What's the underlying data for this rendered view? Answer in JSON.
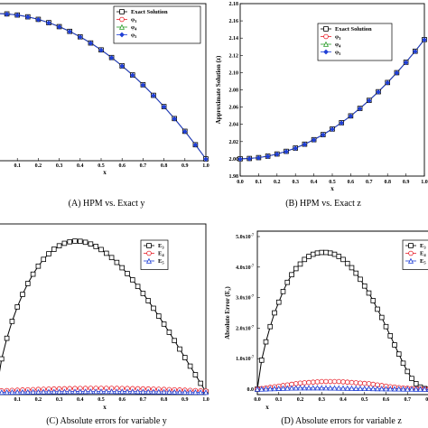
{
  "chart_data": [
    {
      "type": "line",
      "caption": "(A) HPM vs. Exact y",
      "xlabel": "x",
      "ylabel": "",
      "xlim": [
        0.0,
        1.0
      ],
      "x_ticks": [
        "0.1",
        "0.2",
        "0.3",
        "0.4",
        "0.5",
        "0.6",
        "0.7",
        "0.8",
        "0.9",
        "1.0"
      ],
      "y_ticks": [],
      "legend_position": "top-right",
      "series": [
        {
          "name": "Exact Solution",
          "marker": "square",
          "color": "#000000",
          "legend_color": "#000000"
        },
        {
          "name": "φ3",
          "marker": "circle",
          "color": "#e8202a",
          "legend_color": "#e8202a"
        },
        {
          "name": "φ4",
          "marker": "triangle",
          "color": "#2a9d2a",
          "legend_color": "#2a9d2a"
        },
        {
          "name": "φ5",
          "marker": "diamond",
          "color": "#1f3fd6",
          "legend_color": "#1f3fd6"
        }
      ],
      "x": [
        0.0,
        0.05,
        0.1,
        0.15,
        0.2,
        0.25,
        0.3,
        0.35,
        0.4,
        0.45,
        0.5,
        0.55,
        0.6,
        0.65,
        0.7,
        0.75,
        0.8,
        0.85,
        0.9,
        0.95,
        1.0
      ],
      "y_norm": [
        1.0,
        0.9975,
        0.99,
        0.9775,
        0.96,
        0.9375,
        0.91,
        0.8775,
        0.84,
        0.7975,
        0.75,
        0.6975,
        0.64,
        0.5775,
        0.51,
        0.4375,
        0.36,
        0.2775,
        0.19,
        0.0975,
        0.0
      ]
    },
    {
      "type": "line",
      "caption": "(B) HPM vs. Exact z",
      "xlabel": "x",
      "ylabel": "Approximate Solution (z)",
      "xlim": [
        0.0,
        1.0
      ],
      "ylim": [
        1.98,
        2.18
      ],
      "x_ticks": [
        "0.0",
        "0.1",
        "0.2",
        "0.3",
        "0.4",
        "0.5",
        "0.6",
        "0.7",
        "0.8",
        "0.9",
        "1.0"
      ],
      "y_ticks": [
        "1.98",
        "2.00",
        "2.02",
        "2.04",
        "2.06",
        "2.08",
        "2.10",
        "2.12",
        "2.14",
        "2.16",
        "2.18"
      ],
      "legend_position": "top-right",
      "series": [
        {
          "name": "Exact Solution",
          "marker": "square",
          "color": "#000000",
          "legend_color": "#000000"
        },
        {
          "name": "φ3",
          "marker": "circle",
          "color": "#e8202a",
          "legend_color": "#e8202a"
        },
        {
          "name": "φ4",
          "marker": "triangle",
          "color": "#2a9d2a",
          "legend_color": "#2a9d2a"
        },
        {
          "name": "φ5",
          "marker": "diamond",
          "color": "#1f3fd6",
          "legend_color": "#1f3fd6"
        }
      ],
      "x": [
        0.0,
        0.05,
        0.1,
        0.15,
        0.2,
        0.25,
        0.3,
        0.35,
        0.4,
        0.45,
        0.5,
        0.55,
        0.6,
        0.65,
        0.7,
        0.75,
        0.8,
        0.85,
        0.9,
        0.95,
        1.0
      ],
      "y": [
        2.0,
        2.0004,
        2.0014,
        2.0031,
        2.0056,
        2.0087,
        2.0125,
        2.017,
        2.0222,
        2.0281,
        2.0346,
        2.0419,
        2.0498,
        2.0585,
        2.0678,
        2.0778,
        2.0885,
        2.0999,
        2.112,
        2.1248,
        2.1383
      ]
    },
    {
      "type": "line",
      "caption": "(C) Absolute errors for variable y",
      "xlabel": "x",
      "ylabel": "",
      "xlim": [
        0.0,
        1.0
      ],
      "x_ticks": [
        "0.1",
        "0.2",
        "0.3",
        "0.4",
        "0.5",
        "0.6",
        "0.7",
        "0.8",
        "0.9",
        "1.0"
      ],
      "y_ticks": [],
      "legend_position": "top-right",
      "series": [
        {
          "name": "E3",
          "marker": "square",
          "color": "#000000",
          "legend_color": "#000000"
        },
        {
          "name": "E4",
          "marker": "circle",
          "color": "#e8202a",
          "legend_color": "#e8202a"
        },
        {
          "name": "E5",
          "marker": "triangle",
          "color": "#1f3fd6",
          "legend_color": "#1f3fd6"
        }
      ],
      "x": [
        0.0,
        0.025,
        0.05,
        0.075,
        0.1,
        0.125,
        0.15,
        0.175,
        0.2,
        0.225,
        0.25,
        0.275,
        0.3,
        0.325,
        0.35,
        0.375,
        0.4,
        0.425,
        0.45,
        0.475,
        0.5,
        0.525,
        0.55,
        0.575,
        0.6,
        0.625,
        0.65,
        0.675,
        0.7,
        0.725,
        0.75,
        0.775,
        0.8,
        0.825,
        0.85,
        0.875,
        0.9,
        0.925,
        0.95,
        0.975,
        1.0
      ]
    },
    {
      "type": "line",
      "caption": "(D) Absolute errors for variable z",
      "xlabel": "x",
      "ylabel": "Absolute Error (Ez)",
      "xlim": [
        0.0,
        0.8
      ],
      "ylim": [
        0.0,
        5.0
      ],
      "y_unit_exponent": "-7",
      "x_ticks": [
        "0.0",
        "0.1",
        "0.2",
        "0.3",
        "0.4",
        "0.5",
        "0.6",
        "0.7",
        "0.8"
      ],
      "y_ticks": [
        "0.0",
        "1.0x10",
        "2.0x10",
        "3.0x10",
        "4.0x10",
        "5.0x10"
      ],
      "legend_position": "top-right",
      "series": [
        {
          "name": "E3",
          "marker": "square",
          "color": "#000000",
          "legend_color": "#000000"
        },
        {
          "name": "E4",
          "marker": "circle",
          "color": "#e8202a",
          "legend_color": "#e8202a"
        },
        {
          "name": "E5",
          "marker": "triangle",
          "color": "#1f3fd6",
          "legend_color": "#1f3fd6"
        }
      ],
      "x": [
        0.0,
        0.02,
        0.04,
        0.06,
        0.08,
        0.1,
        0.12,
        0.14,
        0.16,
        0.18,
        0.2,
        0.22,
        0.24,
        0.26,
        0.28,
        0.3,
        0.32,
        0.34,
        0.36,
        0.38,
        0.4,
        0.42,
        0.44,
        0.46,
        0.48,
        0.5,
        0.52,
        0.54,
        0.56,
        0.58,
        0.6,
        0.62,
        0.64,
        0.66,
        0.68,
        0.7,
        0.72,
        0.74,
        0.76,
        0.78,
        0.8
      ],
      "y": [
        0.0,
        0.95,
        1.55,
        2.05,
        2.5,
        2.85,
        3.2,
        3.5,
        3.75,
        3.95,
        4.1,
        4.25,
        4.35,
        4.42,
        4.46,
        4.48,
        4.48,
        4.46,
        4.42,
        4.35,
        4.25,
        4.12,
        3.98,
        3.8,
        3.6,
        3.38,
        3.15,
        2.9,
        2.62,
        2.35,
        2.05,
        1.75,
        1.45,
        1.15,
        0.85,
        0.58,
        0.35,
        0.18,
        0.07,
        0.02,
        0.0
      ],
      "y_E4": [
        0.0,
        0.02,
        0.04,
        0.06,
        0.08,
        0.1,
        0.12,
        0.14,
        0.16,
        0.18,
        0.2,
        0.21,
        0.22,
        0.23,
        0.24,
        0.25,
        0.25,
        0.25,
        0.25,
        0.25,
        0.24,
        0.23,
        0.22,
        0.21,
        0.2,
        0.19,
        0.18,
        0.16,
        0.14,
        0.12,
        0.1,
        0.08,
        0.07,
        0.05,
        0.04,
        0.03,
        0.02,
        0.01,
        0.01,
        0.0,
        0.0
      ],
      "y_E5": [
        0.0,
        0.005,
        0.01,
        0.015,
        0.02,
        0.025,
        0.03,
        0.035,
        0.038,
        0.04,
        0.042,
        0.043,
        0.044,
        0.044,
        0.044,
        0.043,
        0.042,
        0.04,
        0.038,
        0.036,
        0.034,
        0.032,
        0.03,
        0.028,
        0.026,
        0.024,
        0.022,
        0.02,
        0.018,
        0.016,
        0.014,
        0.012,
        0.01,
        0.008,
        0.006,
        0.005,
        0.004,
        0.003,
        0.002,
        0.001,
        0.0
      ]
    }
  ]
}
